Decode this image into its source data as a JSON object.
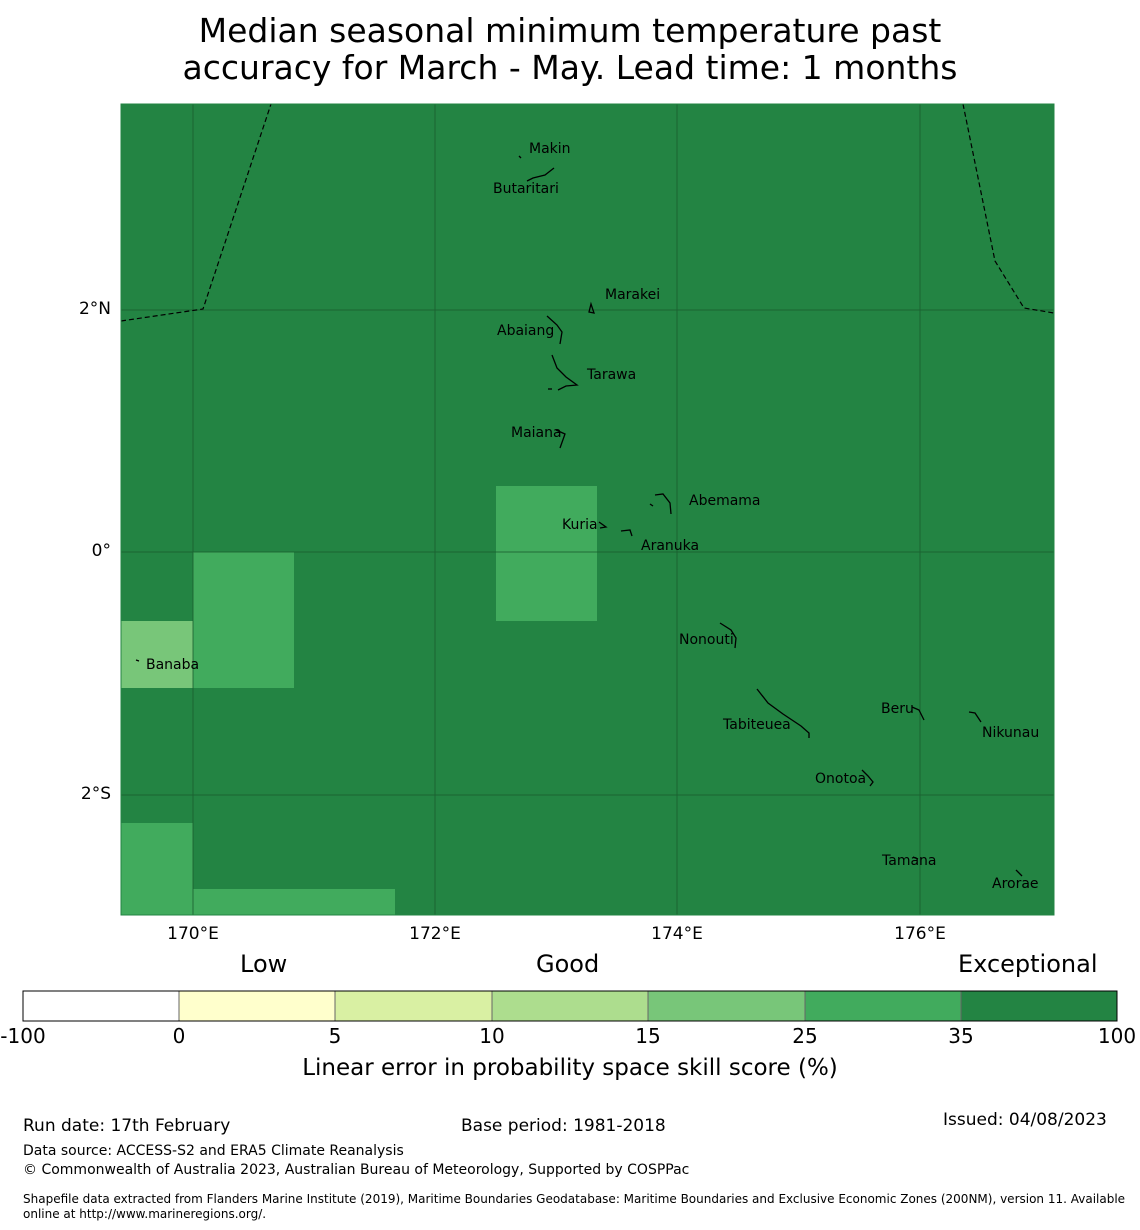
{
  "title": {
    "line1": "Median seasonal minimum temperature past",
    "line2": "accuracy for March - May. Lead time: 1 months"
  },
  "map": {
    "base_color": "#238443",
    "lon_range": [
      169.4,
      177.1
    ],
    "lat_range": [
      -3.0,
      3.7
    ],
    "lat_ticks": [
      "2°N",
      "0°",
      "2°S"
    ],
    "lon_ticks": [
      "170°E",
      "172°E",
      "174°E",
      "176°E"
    ],
    "islands": [
      "Makin",
      "Butaritari",
      "Marakei",
      "Abaiang",
      "Tarawa",
      "Maiana",
      "Abemama",
      "Kuria",
      "Aranuka",
      "Nonouti",
      "Banaba",
      "Beru",
      "Nikunau",
      "Tabiteuea",
      "Onotoa",
      "Tamana",
      "Arorae"
    ]
  },
  "legend": {
    "categories": [
      "Low",
      "Good",
      "Exceptional"
    ],
    "tick_labels": [
      "-100",
      "0",
      "5",
      "10",
      "15",
      "25",
      "35",
      "100"
    ],
    "colors": [
      "#ffffff",
      "#ffffcc",
      "#d9f0a3",
      "#addd8e",
      "#78c679",
      "#41ab5d",
      "#238443"
    ],
    "label": "Linear error in probability space skill score (%)"
  },
  "footer": {
    "run_date": "Run date: 17th February",
    "base_period": "Base period: 1981-2018",
    "issued": "Issued: 04/08/2023",
    "data_source": "Data source: ACCESS-S2 and ERA5 Climate Reanalysis",
    "copyright": "© Commonwealth of Australia 2023, Australian Bureau of Meteorology, Supported by COSPPac",
    "shapefile_line1": "Shapefile data extracted from Flanders Marine Institute (2019), Maritime Boundaries Geodatabase: Maritime Boundaries and Exclusive Economic Zones (200NM), version 11. Available",
    "shapefile_line2": "online at http://www.marineregions.org/."
  }
}
